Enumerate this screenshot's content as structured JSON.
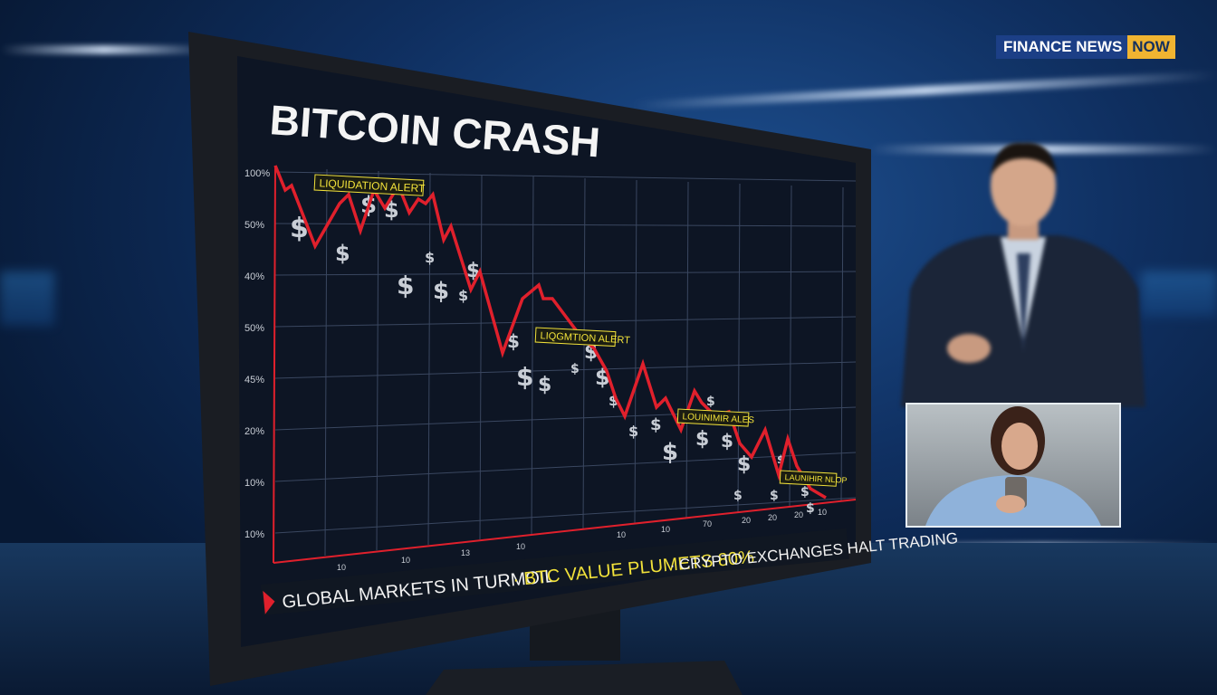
{
  "broadcast": {
    "logo_primary": "FINANCE NEWS",
    "logo_accent": "NOW",
    "logo_colors": {
      "primary": "#1c3f86",
      "accent": "#f0b431"
    }
  },
  "screen": {
    "title": "BITCOIN CRASH",
    "y_labels": [
      "100%",
      "50%",
      "40%",
      "50%",
      "45%",
      "20%",
      "10%",
      "10%"
    ],
    "x_labels": [
      "10",
      "10",
      "13",
      "10",
      "10",
      "10",
      "70",
      "20",
      "20",
      "20",
      "10"
    ],
    "alerts": [
      "LIQUIDATION ALERT",
      "LIQGMTION ALERT",
      "LOUINIMIR ALES",
      "LAUNIHIR NLOP"
    ],
    "dollar_symbol": "$",
    "line_color": "#e0202c",
    "alert_color": "#f2e23a",
    "ticker": {
      "item1": "GLOBAL MARKETS IN TURMOIL",
      "item2": "· BTC VALUE PLUMETS 80%",
      "item3": "· CRYPTO EXCHANGES HALT TRADING"
    }
  }
}
